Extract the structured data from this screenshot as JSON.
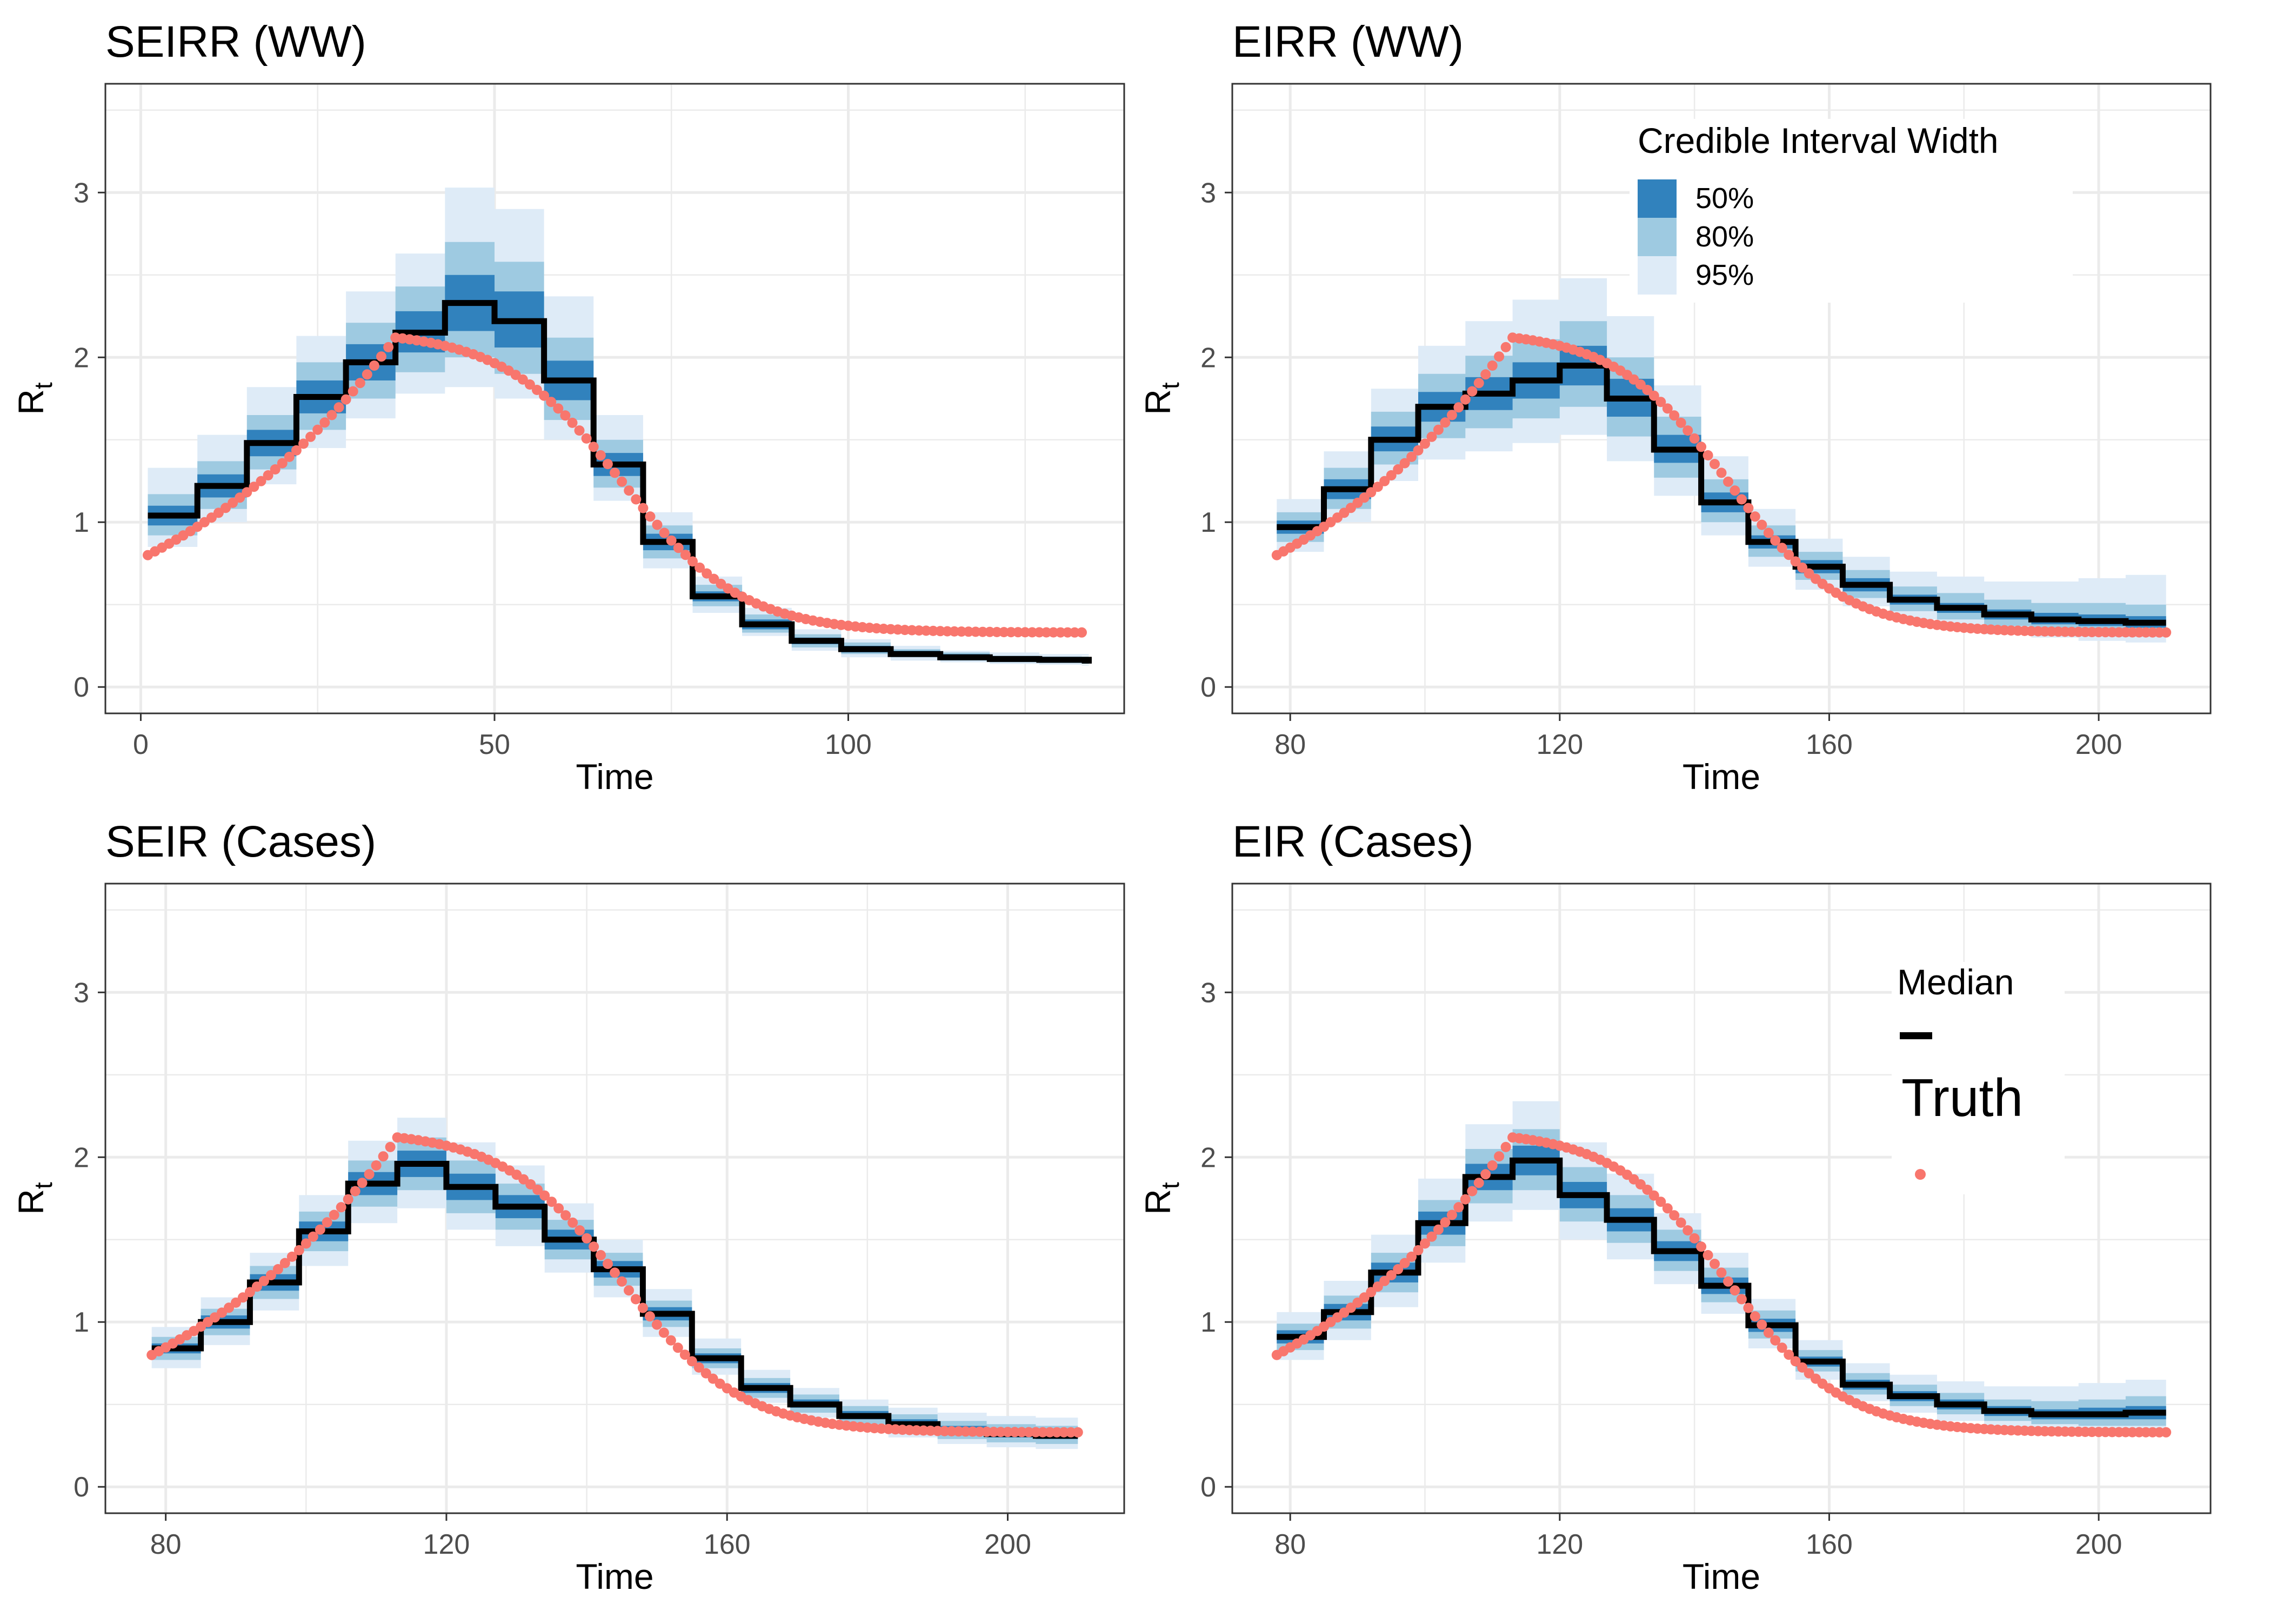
{
  "figure": {
    "colors": {
      "panel_bg": "#ffffff",
      "grid": "#ebebeb",
      "border": "#333333",
      "ci_50": "#3182bd",
      "ci_80": "#9ecae1",
      "ci_95": "#deebf7",
      "median": "#000000",
      "truth": "#f8766d",
      "text": "#000000",
      "tick_text": "#4d4d4d"
    },
    "legend_ci": {
      "title": "Credible Interval Width",
      "items": [
        {
          "label": "50%",
          "color": "#3182bd"
        },
        {
          "label": "80%",
          "color": "#9ecae1"
        },
        {
          "label": "95%",
          "color": "#deebf7"
        }
      ]
    },
    "legend_median": {
      "title": "Median"
    },
    "legend_truth": {
      "title": "Truth"
    }
  },
  "chart_data": [
    {
      "type": "line",
      "title": "SEIRR (WW)",
      "xlabel": "Time",
      "ylabel_main": "R",
      "ylabel_sub": "t",
      "xlim": [
        -5,
        139
      ],
      "ylim": [
        -0.16,
        3.66
      ],
      "xticks": [
        0,
        50,
        100
      ],
      "yticks": [
        0,
        1,
        2,
        3
      ],
      "step": 7,
      "bands": {
        "x": [
          1,
          8,
          15,
          22,
          29,
          36,
          43,
          50,
          57,
          64,
          71,
          78,
          85,
          92,
          99,
          106,
          113,
          120,
          127,
          134
        ],
        "median": [
          1.04,
          1.22,
          1.48,
          1.76,
          1.97,
          2.15,
          2.33,
          2.22,
          1.86,
          1.35,
          0.88,
          0.55,
          0.38,
          0.28,
          0.23,
          0.2,
          0.18,
          0.17,
          0.165,
          0.16
        ],
        "lo50": [
          0.98,
          1.15,
          1.4,
          1.66,
          1.86,
          2.03,
          2.16,
          2.06,
          1.74,
          1.28,
          0.83,
          0.52,
          0.35,
          0.26,
          0.21,
          0.19,
          0.17,
          0.16,
          0.155,
          0.15
        ],
        "hi50": [
          1.1,
          1.29,
          1.56,
          1.86,
          2.08,
          2.28,
          2.5,
          2.4,
          1.98,
          1.42,
          0.93,
          0.58,
          0.41,
          0.3,
          0.25,
          0.22,
          0.2,
          0.18,
          0.175,
          0.17
        ],
        "lo80": [
          0.92,
          1.08,
          1.32,
          1.56,
          1.75,
          1.91,
          2.0,
          1.9,
          1.62,
          1.21,
          0.78,
          0.49,
          0.33,
          0.24,
          0.2,
          0.18,
          0.16,
          0.15,
          0.145,
          0.14
        ],
        "hi80": [
          1.17,
          1.37,
          1.65,
          1.97,
          2.21,
          2.43,
          2.7,
          2.58,
          2.12,
          1.5,
          0.98,
          0.62,
          0.44,
          0.32,
          0.27,
          0.23,
          0.21,
          0.19,
          0.185,
          0.18
        ],
        "lo95": [
          0.85,
          1.0,
          1.23,
          1.45,
          1.63,
          1.78,
          1.82,
          1.75,
          1.5,
          1.13,
          0.72,
          0.45,
          0.31,
          0.22,
          0.18,
          0.16,
          0.15,
          0.14,
          0.135,
          0.13
        ],
        "hi95": [
          1.33,
          1.53,
          1.82,
          2.13,
          2.4,
          2.63,
          3.03,
          2.9,
          2.37,
          1.65,
          1.06,
          0.67,
          0.48,
          0.35,
          0.29,
          0.25,
          0.22,
          0.21,
          0.2,
          0.19
        ]
      },
      "truth": {
        "x_start": 1,
        "x_end": 133,
        "x_peak": 36,
        "y_start": 0.8,
        "y_peak": 2.12,
        "y_end": 0.33,
        "decay_mid": 68,
        "decay_scale": 8.5,
        "decay_y_hi": 2.13,
        "decay_y_lo": 0.32
      }
    },
    {
      "type": "line",
      "title": "EIRR (WW)",
      "xlabel": "Time",
      "ylabel_main": "R",
      "ylabel_sub": "t",
      "xlim": [
        71.4,
        216.6
      ],
      "ylim": [
        -0.16,
        3.66
      ],
      "xticks": [
        80,
        120,
        160,
        200
      ],
      "yticks": [
        0,
        1,
        2,
        3
      ],
      "step": 7,
      "bands": {
        "x": [
          78,
          85,
          92,
          99,
          106,
          113,
          120,
          127,
          134,
          141,
          148,
          155,
          162,
          169,
          176,
          183,
          190,
          197,
          204
        ],
        "median": [
          0.97,
          1.2,
          1.5,
          1.7,
          1.78,
          1.86,
          1.95,
          1.75,
          1.44,
          1.12,
          0.88,
          0.73,
          0.62,
          0.53,
          0.48,
          0.44,
          0.41,
          0.4,
          0.39
        ],
        "lo50": [
          0.93,
          1.14,
          1.43,
          1.61,
          1.68,
          1.75,
          1.83,
          1.64,
          1.36,
          1.06,
          0.84,
          0.69,
          0.58,
          0.5,
          0.45,
          0.41,
          0.38,
          0.37,
          0.36
        ],
        "hi50": [
          1.01,
          1.26,
          1.58,
          1.79,
          1.88,
          1.97,
          2.07,
          1.87,
          1.53,
          1.18,
          0.92,
          0.77,
          0.66,
          0.56,
          0.51,
          0.47,
          0.45,
          0.44,
          0.43
        ],
        "lo80": [
          0.88,
          1.08,
          1.35,
          1.51,
          1.57,
          1.63,
          1.7,
          1.52,
          1.27,
          1.0,
          0.79,
          0.65,
          0.54,
          0.46,
          0.41,
          0.37,
          0.35,
          0.33,
          0.32
        ],
        "hi80": [
          1.06,
          1.33,
          1.67,
          1.9,
          2.01,
          2.11,
          2.22,
          2.0,
          1.64,
          1.26,
          0.98,
          0.82,
          0.71,
          0.61,
          0.57,
          0.53,
          0.51,
          0.51,
          0.5
        ],
        "lo95": [
          0.82,
          1.0,
          1.25,
          1.38,
          1.43,
          1.48,
          1.53,
          1.37,
          1.16,
          0.92,
          0.73,
          0.59,
          0.49,
          0.41,
          0.36,
          0.32,
          0.3,
          0.28,
          0.27
        ],
        "hi95": [
          1.14,
          1.43,
          1.81,
          2.07,
          2.22,
          2.35,
          2.48,
          2.25,
          1.83,
          1.4,
          1.08,
          0.9,
          0.79,
          0.7,
          0.67,
          0.64,
          0.64,
          0.66,
          0.68
        ]
      },
      "truth": {
        "x_start": 78,
        "x_end": 210,
        "x_peak": 113,
        "y_start": 0.8,
        "y_peak": 2.12,
        "y_end": 0.33,
        "decay_mid": 145,
        "decay_scale": 8.5,
        "decay_y_hi": 2.13,
        "decay_y_lo": 0.32
      }
    },
    {
      "type": "line",
      "title": "SEIR (Cases)",
      "xlabel": "Time",
      "ylabel_main": "R",
      "ylabel_sub": "t",
      "xlim": [
        71.4,
        216.6
      ],
      "ylim": [
        -0.16,
        3.66
      ],
      "xticks": [
        80,
        120,
        160,
        200
      ],
      "yticks": [
        0,
        1,
        2,
        3
      ],
      "step": 7,
      "bands": {
        "x": [
          78,
          85,
          92,
          99,
          106,
          113,
          120,
          127,
          134,
          141,
          148,
          155,
          162,
          169,
          176,
          183,
          190,
          197,
          204
        ],
        "median": [
          0.84,
          1.0,
          1.24,
          1.55,
          1.84,
          1.96,
          1.82,
          1.7,
          1.5,
          1.32,
          1.05,
          0.78,
          0.6,
          0.5,
          0.43,
          0.38,
          0.34,
          0.32,
          0.31
        ],
        "lo50": [
          0.81,
          0.96,
          1.19,
          1.49,
          1.77,
          1.88,
          1.74,
          1.63,
          1.44,
          1.27,
          1.01,
          0.75,
          0.57,
          0.48,
          0.41,
          0.36,
          0.32,
          0.3,
          0.29
        ],
        "hi50": [
          0.87,
          1.04,
          1.29,
          1.61,
          1.91,
          2.04,
          1.9,
          1.77,
          1.56,
          1.37,
          1.09,
          0.81,
          0.63,
          0.53,
          0.46,
          0.41,
          0.37,
          0.35,
          0.34
        ],
        "lo80": [
          0.77,
          0.92,
          1.14,
          1.43,
          1.7,
          1.8,
          1.66,
          1.56,
          1.38,
          1.22,
          0.97,
          0.72,
          0.54,
          0.45,
          0.38,
          0.33,
          0.29,
          0.27,
          0.26
        ],
        "hi80": [
          0.91,
          1.08,
          1.34,
          1.67,
          1.98,
          2.12,
          1.98,
          1.84,
          1.62,
          1.42,
          1.13,
          0.84,
          0.66,
          0.56,
          0.49,
          0.44,
          0.4,
          0.38,
          0.37
        ],
        "lo95": [
          0.72,
          0.86,
          1.07,
          1.34,
          1.6,
          1.69,
          1.56,
          1.46,
          1.3,
          1.15,
          0.91,
          0.68,
          0.51,
          0.42,
          0.35,
          0.3,
          0.26,
          0.24,
          0.23
        ],
        "hi95": [
          0.97,
          1.15,
          1.42,
          1.77,
          2.1,
          2.24,
          2.09,
          1.95,
          1.72,
          1.5,
          1.2,
          0.9,
          0.71,
          0.6,
          0.53,
          0.48,
          0.45,
          0.43,
          0.42
        ]
      },
      "truth": {
        "x_start": 78,
        "x_end": 210,
        "x_peak": 113,
        "y_start": 0.8,
        "y_peak": 2.12,
        "y_end": 0.33,
        "decay_mid": 145,
        "decay_scale": 8.5,
        "decay_y_hi": 2.13,
        "decay_y_lo": 0.32
      }
    },
    {
      "type": "line",
      "title": "EIR (Cases)",
      "xlabel": "Time",
      "ylabel_main": "R",
      "ylabel_sub": "t",
      "xlim": [
        71.4,
        216.6
      ],
      "ylim": [
        -0.16,
        3.66
      ],
      "xticks": [
        80,
        120,
        160,
        200
      ],
      "yticks": [
        0,
        1,
        2,
        3
      ],
      "step": 7,
      "bands": {
        "x": [
          78,
          85,
          92,
          99,
          106,
          113,
          120,
          127,
          134,
          141,
          148,
          155,
          162,
          169,
          176,
          183,
          190,
          197,
          204
        ],
        "median": [
          0.91,
          1.06,
          1.3,
          1.6,
          1.88,
          1.98,
          1.77,
          1.62,
          1.43,
          1.22,
          0.98,
          0.76,
          0.62,
          0.55,
          0.5,
          0.46,
          0.44,
          0.44,
          0.45
        ],
        "lo50": [
          0.87,
          1.01,
          1.24,
          1.53,
          1.8,
          1.89,
          1.69,
          1.55,
          1.37,
          1.17,
          0.94,
          0.73,
          0.59,
          0.52,
          0.47,
          0.43,
          0.41,
          0.41,
          0.41
        ],
        "hi50": [
          0.95,
          1.11,
          1.36,
          1.67,
          1.96,
          2.07,
          1.85,
          1.69,
          1.49,
          1.27,
          1.02,
          0.79,
          0.65,
          0.58,
          0.53,
          0.49,
          0.47,
          0.48,
          0.49
        ],
        "lo80": [
          0.83,
          0.96,
          1.18,
          1.46,
          1.72,
          1.8,
          1.61,
          1.48,
          1.31,
          1.12,
          0.9,
          0.7,
          0.56,
          0.49,
          0.44,
          0.4,
          0.38,
          0.37,
          0.37
        ],
        "hi80": [
          0.99,
          1.16,
          1.42,
          1.74,
          2.05,
          2.17,
          1.94,
          1.77,
          1.56,
          1.33,
          1.07,
          0.83,
          0.69,
          0.62,
          0.57,
          0.53,
          0.52,
          0.53,
          0.55
        ],
        "lo95": [
          0.77,
          0.89,
          1.09,
          1.36,
          1.61,
          1.68,
          1.5,
          1.38,
          1.23,
          1.05,
          0.84,
          0.65,
          0.52,
          0.45,
          0.4,
          0.36,
          0.33,
          0.32,
          0.31
        ],
        "hi95": [
          1.06,
          1.25,
          1.53,
          1.87,
          2.2,
          2.34,
          2.09,
          1.9,
          1.66,
          1.42,
          1.14,
          0.89,
          0.75,
          0.68,
          0.64,
          0.61,
          0.61,
          0.63,
          0.65
        ]
      },
      "truth": {
        "x_start": 78,
        "x_end": 210,
        "x_peak": 113,
        "y_start": 0.8,
        "y_peak": 2.12,
        "y_end": 0.33,
        "decay_mid": 145,
        "decay_scale": 8.5,
        "decay_y_hi": 2.13,
        "decay_y_lo": 0.32
      }
    }
  ]
}
